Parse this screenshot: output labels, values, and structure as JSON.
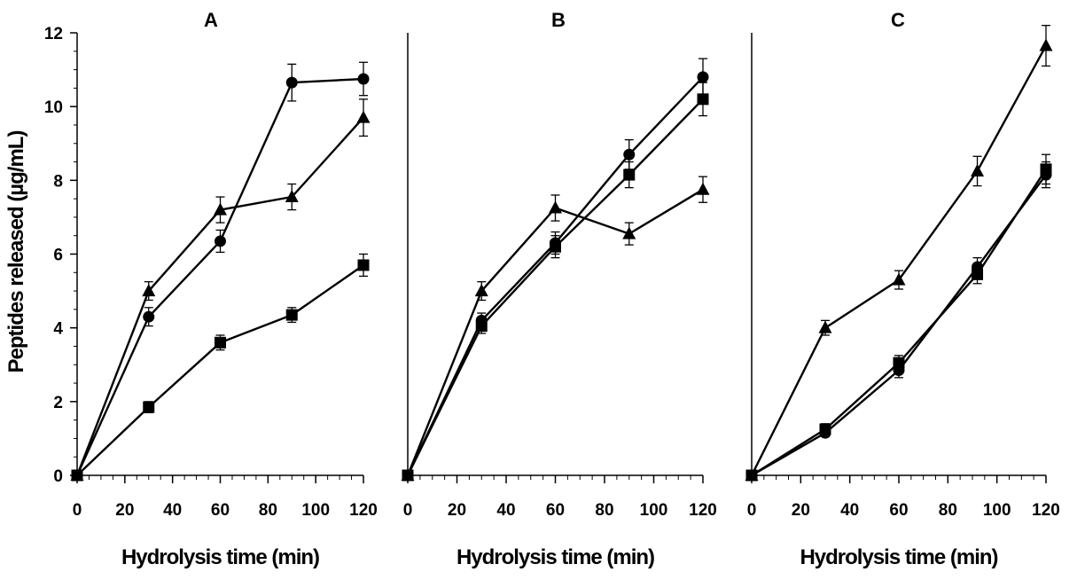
{
  "chart_data": [
    {
      "type": "line",
      "title": "A",
      "xlabel": "Hydrolysis time (min)",
      "ylabel": "Peptides released (µg/mL)",
      "xlim": [
        0,
        120
      ],
      "ylim": [
        0,
        12
      ],
      "xticks": [
        0,
        20,
        40,
        60,
        80,
        100,
        120
      ],
      "yticks": [
        0,
        2,
        4,
        6,
        8,
        10,
        12
      ],
      "series": [
        {
          "name": "circle",
          "marker": "circle",
          "x": [
            0,
            30,
            60,
            90,
            120
          ],
          "values": [
            0,
            4.3,
            6.35,
            10.65,
            10.75
          ],
          "errors": [
            0,
            0.25,
            0.3,
            0.5,
            0.45
          ]
        },
        {
          "name": "triangle",
          "marker": "triangle",
          "x": [
            0,
            30,
            60,
            90,
            120
          ],
          "values": [
            0,
            5.0,
            7.2,
            7.55,
            9.7
          ],
          "errors": [
            0,
            0.25,
            0.35,
            0.35,
            0.5
          ]
        },
        {
          "name": "square",
          "marker": "square",
          "x": [
            0,
            30,
            60,
            90,
            120
          ],
          "values": [
            0,
            1.85,
            3.6,
            4.35,
            5.7
          ],
          "errors": [
            0,
            0.15,
            0.2,
            0.2,
            0.3
          ]
        }
      ]
    },
    {
      "type": "line",
      "title": "B",
      "xlabel": "Hydrolysis time (min)",
      "ylabel": "",
      "xlim": [
        0,
        120
      ],
      "ylim": [
        0,
        12
      ],
      "xticks": [
        0,
        20,
        40,
        60,
        80,
        100,
        120
      ],
      "yticks": [],
      "series": [
        {
          "name": "circle",
          "marker": "circle",
          "x": [
            0,
            30,
            60,
            90,
            120
          ],
          "values": [
            0,
            4.2,
            6.3,
            8.7,
            10.8
          ],
          "errors": [
            0,
            0.2,
            0.3,
            0.4,
            0.5
          ]
        },
        {
          "name": "triangle",
          "marker": "triangle",
          "x": [
            0,
            30,
            60,
            90,
            120
          ],
          "values": [
            0,
            5.0,
            7.25,
            6.55,
            7.75
          ],
          "errors": [
            0,
            0.25,
            0.35,
            0.3,
            0.35
          ]
        },
        {
          "name": "square",
          "marker": "square",
          "x": [
            0,
            30,
            60,
            90,
            120
          ],
          "values": [
            0,
            4.05,
            6.2,
            8.15,
            10.2
          ],
          "errors": [
            0,
            0.2,
            0.3,
            0.35,
            0.45
          ]
        }
      ]
    },
    {
      "type": "line",
      "title": "C",
      "xlabel": "Hydrolysis time (min)",
      "ylabel": "",
      "xlim": [
        0,
        120
      ],
      "ylim": [
        0,
        12
      ],
      "xticks": [
        0,
        20,
        40,
        60,
        80,
        100,
        120
      ],
      "yticks": [],
      "series": [
        {
          "name": "circle",
          "marker": "circle",
          "x": [
            0,
            30,
            60,
            92,
            120
          ],
          "values": [
            0,
            1.15,
            2.85,
            5.65,
            8.15
          ],
          "errors": [
            0,
            0.1,
            0.2,
            0.25,
            0.35
          ]
        },
        {
          "name": "triangle",
          "marker": "triangle",
          "x": [
            0,
            30,
            60,
            92,
            120
          ],
          "values": [
            0,
            4.0,
            5.3,
            8.25,
            11.65
          ],
          "errors": [
            0,
            0.2,
            0.25,
            0.4,
            0.55
          ]
        },
        {
          "name": "square",
          "marker": "square",
          "x": [
            0,
            30,
            60,
            92,
            120
          ],
          "values": [
            0,
            1.25,
            3.05,
            5.45,
            8.3
          ],
          "errors": [
            0,
            0.15,
            0.2,
            0.25,
            0.4
          ]
        }
      ]
    }
  ]
}
